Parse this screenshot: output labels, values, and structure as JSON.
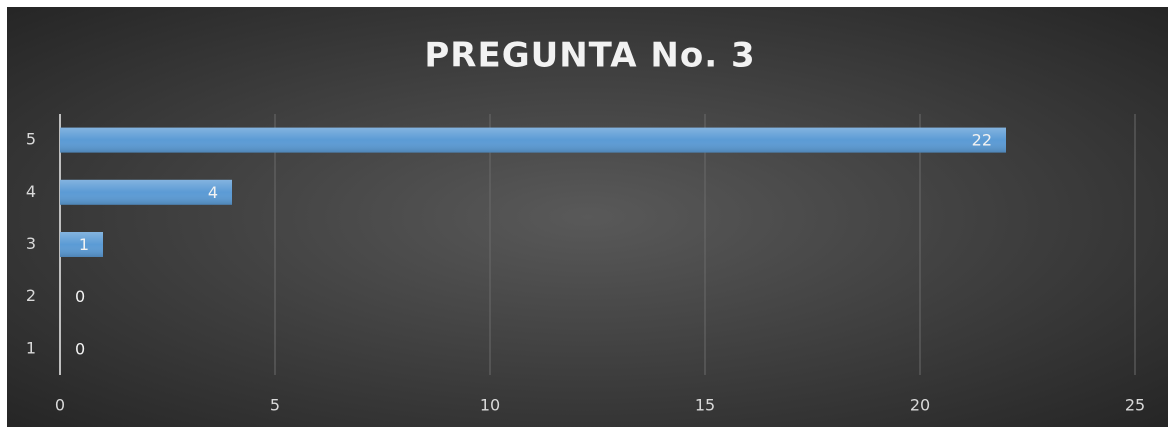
{
  "chart_data": {
    "type": "hbar",
    "title": "PREGUNTA No. 3",
    "categories": [
      "1",
      "2",
      "3",
      "4",
      "5"
    ],
    "values": [
      0,
      0,
      1,
      4,
      22
    ],
    "color": "#5b9bd5",
    "xlim": [
      0,
      25
    ],
    "xticks": [
      0,
      5,
      10,
      15,
      20,
      25
    ],
    "grid": true
  }
}
